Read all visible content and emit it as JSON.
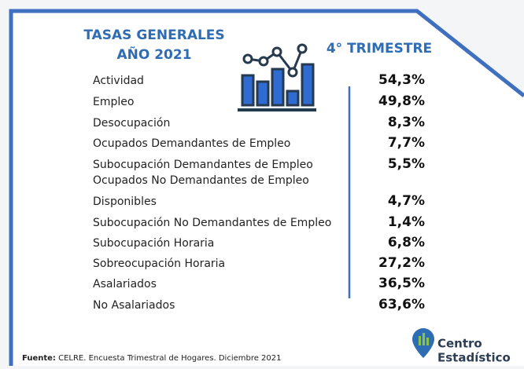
{
  "header": {
    "title_line1": "TASAS GENERALES",
    "title_line2": "AÑO 2021",
    "period": "4° TRIMESTRE"
  },
  "table": {
    "rows": [
      {
        "label": "Actividad",
        "value": "54,3%"
      },
      {
        "label": "Empleo",
        "value": "49,8%"
      },
      {
        "label": "Desocupación",
        "value": "8,3%"
      },
      {
        "label": "Ocupados Demandantes de Empleo",
        "value": "7,7%"
      },
      {
        "label": "Subocupación Demandantes de Empleo",
        "value": "5,5%"
      },
      {
        "label": "Ocupados No Demandantes de Empleo"
      },
      {
        "label": "Disponibles",
        "value": "4,7%"
      },
      {
        "label": "Subocupación No Demandantes de Empleo",
        "value": "1,4%"
      },
      {
        "label": "Subocupación Horaria",
        "value": "6,8%"
      },
      {
        "label": "Sobreocupación Horaria",
        "value": "27,2%"
      },
      {
        "label": "Asalariados",
        "value": "36,5%"
      },
      {
        "label": "No Asalariados",
        "value": "63,6%"
      }
    ]
  },
  "footer": {
    "source_label": "Fuente:",
    "source_text": "CELRE. Encuesta Trimestral de Hogares. Diciembre 2021"
  },
  "logo": {
    "line1": "Centro",
    "line2": "Estadístico"
  }
}
